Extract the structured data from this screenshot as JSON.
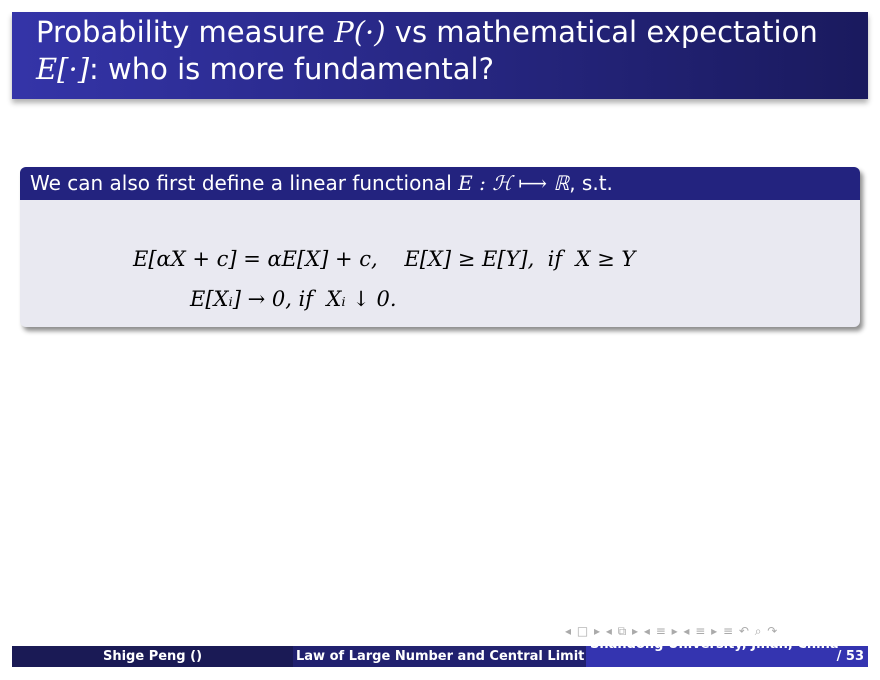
{
  "slide": {
    "title_line1_a": "Probability measure ",
    "title_line1_math": "P(·)",
    "title_line1_b": " vs mathematical expectation",
    "title_line2_math": "E[·]",
    "title_line2_b": ": who is more fundamental?",
    "block_header_text": "We can also first define a linear functional ",
    "block_header_math": "E : ℋ ⟼ ℝ",
    "block_header_tail": ", s.t.",
    "equation1": "E[αX + c] = αE[X] + c,    E[X] ≥ E[Y],  if  X ≥ Y",
    "equation2": "E[Xᵢ] → 0, if  Xᵢ ↓ 0."
  },
  "navigation": {
    "symbols": "◂ □ ▸ ◂ ⧉ ▸ ◂ ≡ ▸ ◂ ≡ ▸   ≡   ↶ ⌕ ↷"
  },
  "footer": {
    "author": "Shige Peng ()",
    "talk_title": "Law of Large Number and Central Limit Th",
    "institute": "Shandong University, Jinan, China",
    "page": "/ 53"
  },
  "colors": {
    "title_bar": "#3434a8",
    "block_header": "#23237f",
    "block_body": "#e9e9f1"
  }
}
